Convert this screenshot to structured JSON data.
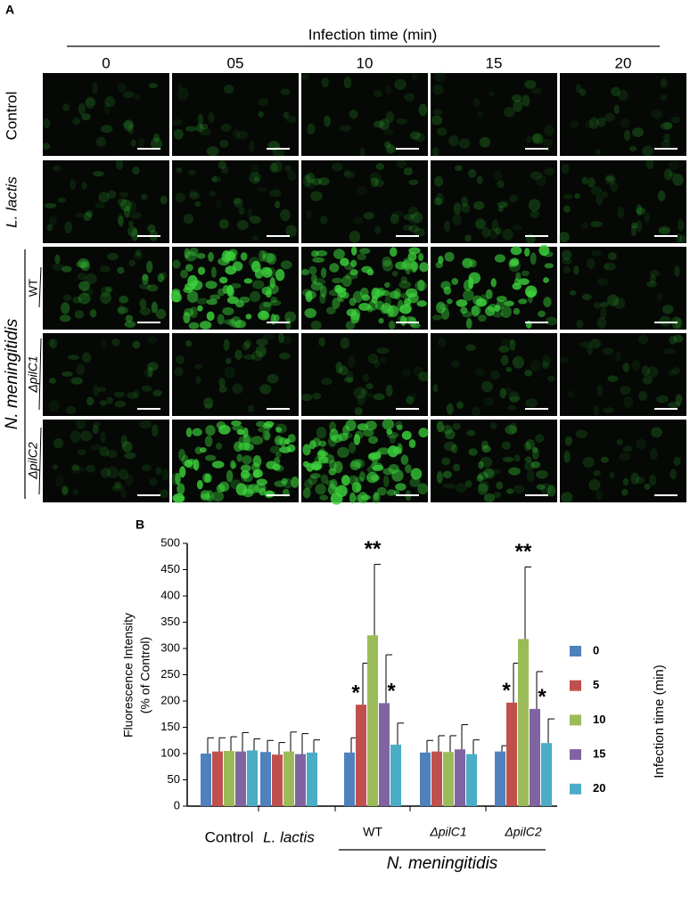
{
  "panel_a": {
    "label": "A",
    "header": "Infection time  (min)",
    "columns": [
      "0",
      "05",
      "10",
      "15",
      "20"
    ],
    "rows": [
      "Control",
      "L. lactis",
      "WT",
      "ΔpilC1",
      "ΔpilC2"
    ],
    "row_group": "N. meningitidis"
  },
  "chart_data": {
    "type": "bar",
    "panel_label": "B",
    "y_label": [
      "Fluorescence Intensity",
      "(% of Control)"
    ],
    "categories": [
      "Control",
      "L. lactis",
      "WT",
      "ΔpilC1",
      "ΔpilC2"
    ],
    "group_label": "N. meningitidis",
    "legend_title": "Infection time  (min)",
    "series": [
      {
        "name": "0",
        "color": "#4f81bd",
        "values": [
          100,
          103,
          102,
          102,
          104
        ],
        "errors": [
          30,
          22,
          28,
          23,
          11
        ],
        "marks": [
          null,
          null,
          null,
          null,
          null
        ]
      },
      {
        "name": "5",
        "color": "#c0504d",
        "values": [
          104,
          98,
          193,
          104,
          197
        ],
        "errors": [
          26,
          23,
          79,
          30,
          75
        ],
        "marks": [
          null,
          null,
          "*",
          null,
          "*"
        ]
      },
      {
        "name": "10",
        "color": "#9bbb59",
        "values": [
          105,
          104,
          325,
          103,
          318
        ],
        "errors": [
          27,
          37,
          135,
          31,
          137
        ],
        "marks": [
          null,
          null,
          "**",
          null,
          "**"
        ]
      },
      {
        "name": "15",
        "color": "#8064a2",
        "values": [
          104,
          99,
          196,
          108,
          185
        ],
        "errors": [
          36,
          39,
          92,
          47,
          71
        ],
        "marks": [
          null,
          null,
          "*",
          null,
          "*"
        ]
      },
      {
        "name": "20",
        "color": "#4bacc6",
        "values": [
          106,
          102,
          117,
          99,
          120
        ],
        "errors": [
          22,
          24,
          41,
          27,
          46
        ],
        "marks": [
          null,
          null,
          null,
          null,
          null
        ]
      }
    ],
    "ylim": [
      0,
      500
    ],
    "yticks": [
      0,
      50,
      100,
      150,
      200,
      250,
      300,
      350,
      400,
      450,
      500
    ]
  }
}
